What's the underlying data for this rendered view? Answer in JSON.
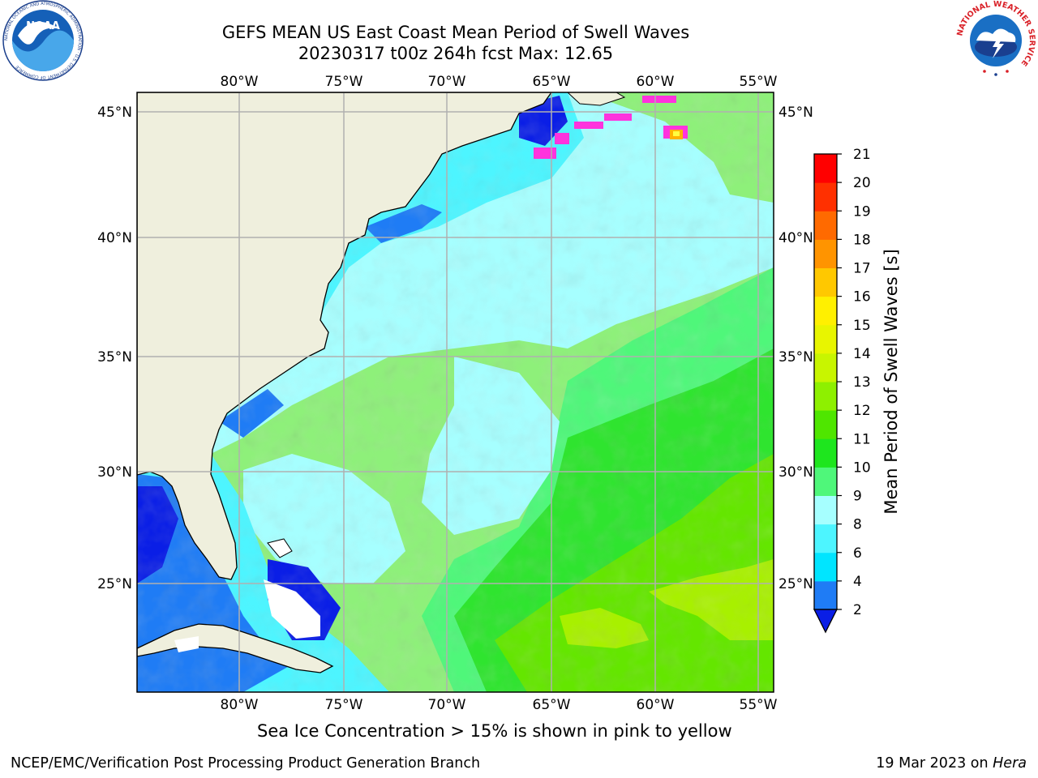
{
  "header": {
    "title_line1": "GEFS MEAN US East Coast Mean Period of Swell Waves",
    "title_line2": "20230317 t00z 264h fcst   Max: 12.65"
  },
  "map": {
    "lon_ticks": [
      "80°W",
      "75°W",
      "70°W",
      "65°W",
      "60°W",
      "55°W"
    ],
    "lat_ticks": [
      "45°N",
      "40°N",
      "35°N",
      "30°N",
      "25°N"
    ],
    "land_color": "#efefdd",
    "grid_color": "#b0b0b0"
  },
  "colorbar": {
    "label": "Mean Period of Swell Waves [s]",
    "ticks": [
      "2",
      "4",
      "6",
      "8",
      "9",
      "10",
      "11",
      "12",
      "13",
      "14",
      "15",
      "16",
      "17",
      "18",
      "19",
      "20",
      "21"
    ],
    "colors": [
      "#0a1ee6",
      "#1f7cf5",
      "#00e5ff",
      "#4df5ff",
      "#a6ffff",
      "#4ff77a",
      "#1ee61e",
      "#4fe600",
      "#8ef000",
      "#c8f500",
      "#e8f500",
      "#fff000",
      "#ffc800",
      "#ff9400",
      "#ff6a00",
      "#ff3000",
      "#ff0000"
    ]
  },
  "notes": {
    "ice_note": "Sea Ice Concentration > 15% is shown in pink to yellow"
  },
  "footer": {
    "left": "NCEP/EMC/Verification Post Processing Product Generation Branch",
    "right_date": "19 Mar 2023 on ",
    "right_host": "Hera"
  },
  "logos": {
    "noaa_text": "NOAA",
    "noaa_ring": "NATIONAL OCEANIC AND ATMOSPHERIC ADMINISTRATION · U.S. DEPARTMENT OF COMMERCE",
    "nws_ring": "NATIONAL WEATHER SERVICE"
  }
}
